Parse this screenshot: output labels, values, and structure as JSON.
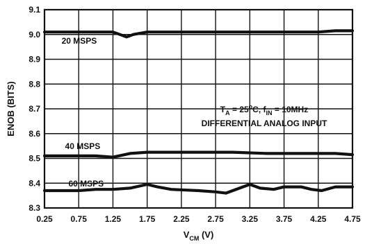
{
  "chart_data": {
    "type": "line",
    "title": "",
    "xlabel": {
      "main": "V",
      "sub": "CM",
      "unit": " (V)"
    },
    "ylabel": "ENOB (BITS)",
    "xlim": [
      0.25,
      4.75
    ],
    "ylim": [
      8.3,
      9.1
    ],
    "x_ticks": [
      "0.25",
      "0.75",
      "1.25",
      "1.75",
      "2.25",
      "2.75",
      "3.25",
      "3.75",
      "4.25",
      "4.75"
    ],
    "y_ticks": [
      "8.3",
      "8.4",
      "8.5",
      "8.6",
      "8.7",
      "8.8",
      "8.9",
      "9.0",
      "9.1"
    ],
    "grid": true,
    "annotation": {
      "line1_a": "T",
      "line1_sub": "A",
      "line1_b": " = 25",
      "line1_sup": "o",
      "line1_c": "C, f",
      "line1_sub2": "IN",
      "line1_d": " = 10MHz",
      "line2": "DIFFERENTIAL ANALOG INPUT"
    },
    "series": [
      {
        "name": "20 MSPS",
        "x": [
          0.25,
          0.5,
          0.75,
          1.0,
          1.25,
          1.35,
          1.45,
          1.55,
          1.75,
          2.0,
          2.25,
          2.5,
          2.75,
          3.0,
          3.25,
          3.5,
          3.75,
          4.0,
          4.25,
          4.5,
          4.75
        ],
        "y": [
          9.01,
          9.01,
          9.01,
          9.01,
          9.01,
          9.0,
          8.99,
          9.0,
          9.01,
          9.01,
          9.01,
          9.01,
          9.01,
          9.01,
          9.01,
          9.01,
          9.01,
          9.01,
          9.01,
          9.015,
          9.015
        ]
      },
      {
        "name": "40 MSPS",
        "x": [
          0.25,
          0.5,
          0.75,
          1.0,
          1.25,
          1.5,
          1.75,
          2.0,
          2.5,
          3.0,
          3.5,
          4.0,
          4.5,
          4.75
        ],
        "y": [
          8.51,
          8.51,
          8.51,
          8.51,
          8.505,
          8.52,
          8.525,
          8.525,
          8.525,
          8.525,
          8.52,
          8.52,
          8.52,
          8.515
        ]
      },
      {
        "name": "60 MSPS",
        "x": [
          0.25,
          0.5,
          0.75,
          1.0,
          1.25,
          1.5,
          1.75,
          1.9,
          2.1,
          2.5,
          2.75,
          2.9,
          3.1,
          3.25,
          3.4,
          3.6,
          3.75,
          4.0,
          4.15,
          4.3,
          4.5,
          4.75
        ],
        "y": [
          8.37,
          8.37,
          8.37,
          8.375,
          8.375,
          8.38,
          8.395,
          8.385,
          8.375,
          8.37,
          8.365,
          8.36,
          8.38,
          8.395,
          8.38,
          8.375,
          8.385,
          8.385,
          8.375,
          8.37,
          8.385,
          8.385
        ]
      }
    ],
    "series_label_positions_desc": "left, above each curve"
  }
}
